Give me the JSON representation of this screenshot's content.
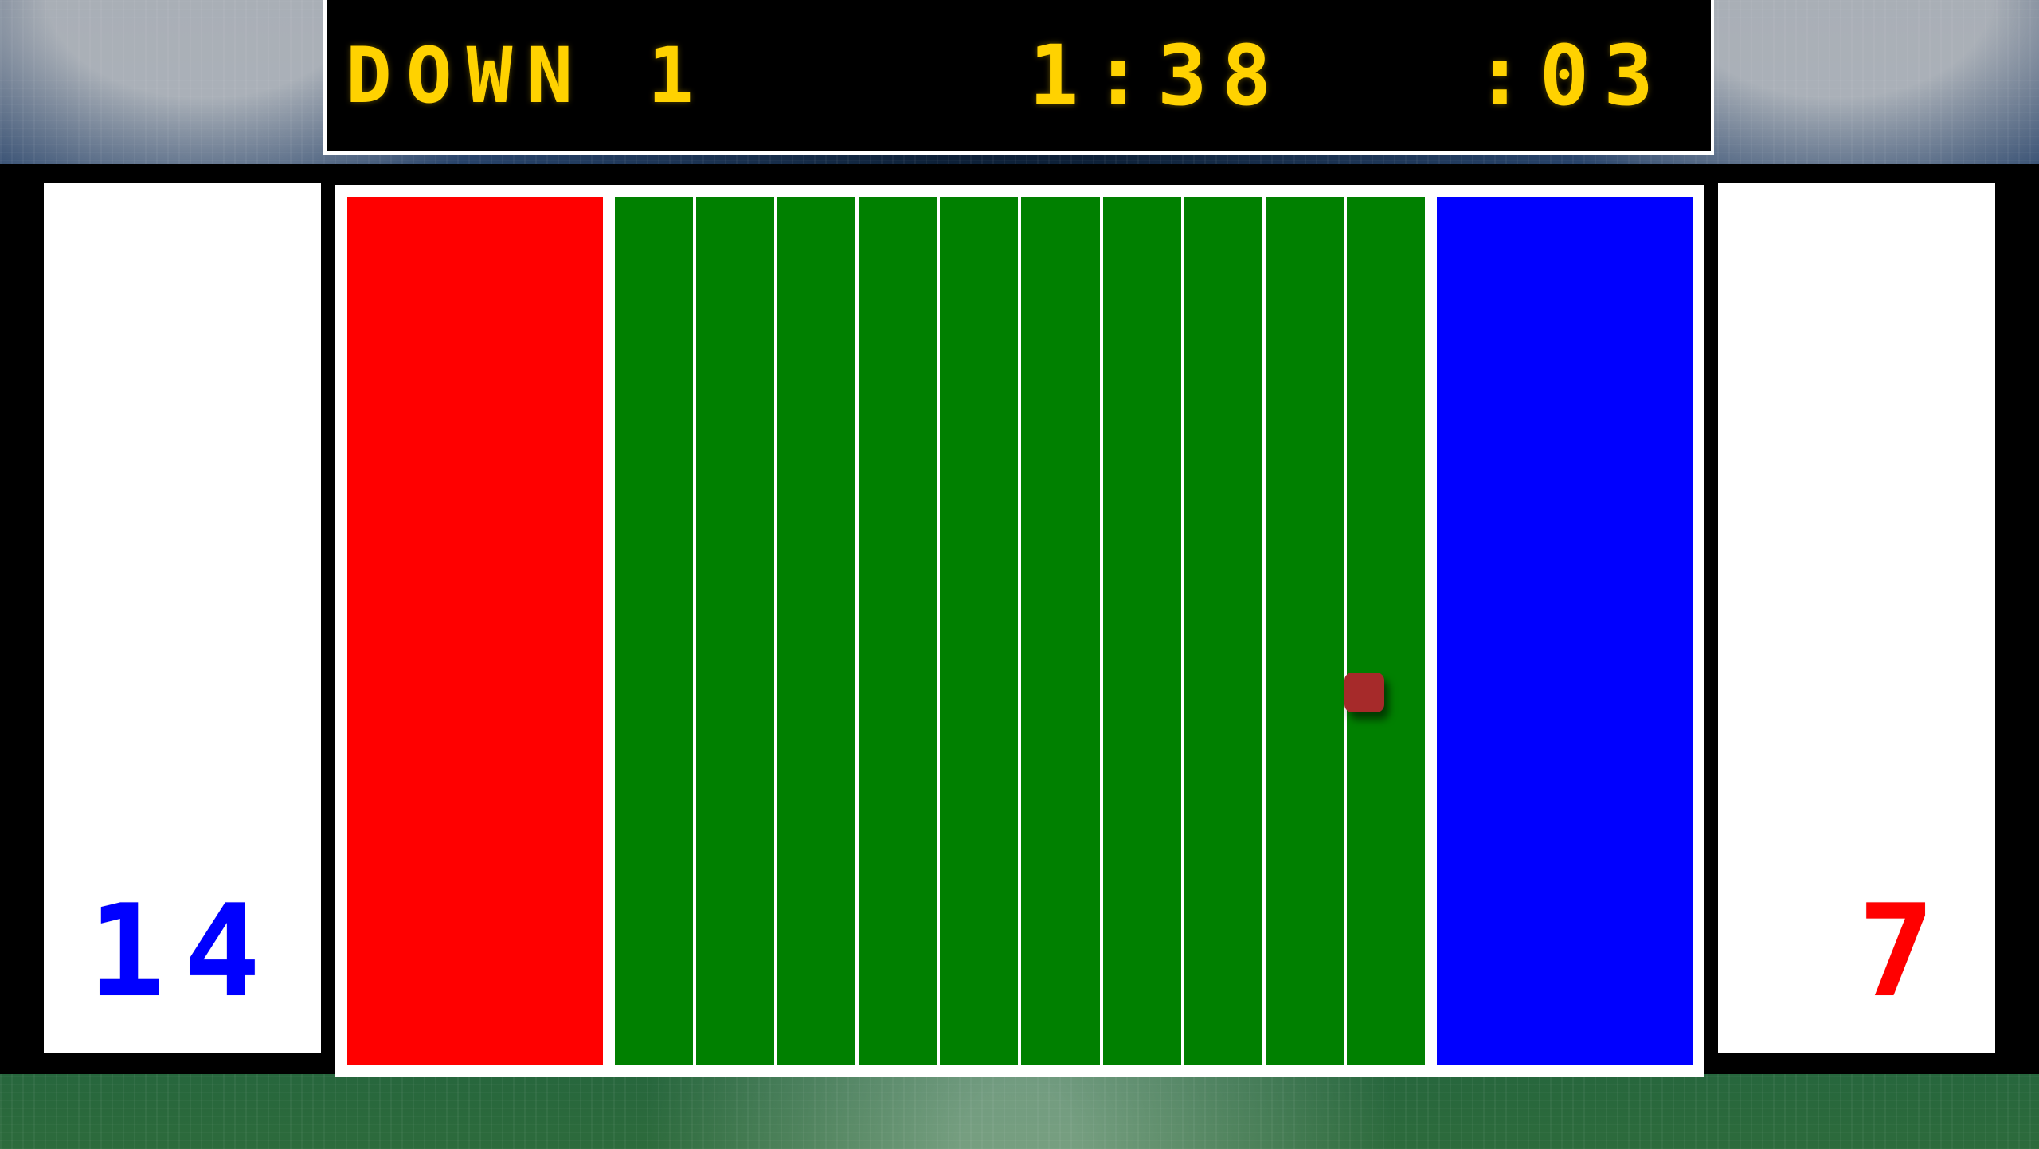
{
  "scoreboard": {
    "down": "DOWN 1",
    "game_clock": "1:38",
    "play_clock": ":03",
    "color": "#ffd200"
  },
  "scores": {
    "left": {
      "value": "14",
      "color": "#0000ff"
    },
    "right": {
      "value": "7",
      "color": "#ff0000"
    }
  },
  "field": {
    "left_endzone_color": "#ff0000",
    "right_endzone_color": "#0000ff",
    "field_color": "#008000",
    "line_color": "#ffffff",
    "yard_columns": 10
  },
  "ball": {
    "color": "#a62a2a"
  }
}
